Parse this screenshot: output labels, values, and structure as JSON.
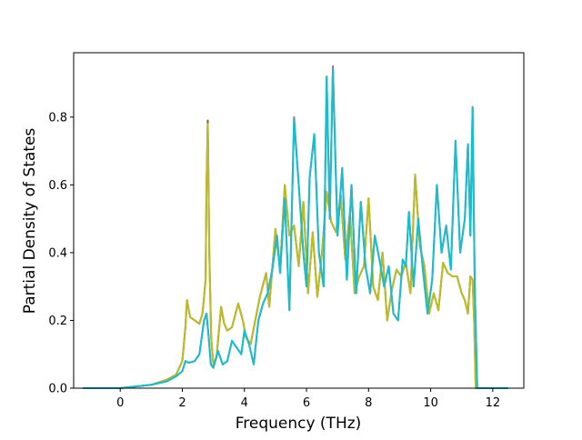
{
  "chart_data": {
    "type": "line",
    "title": "",
    "xlabel": "Frequency (THz)",
    "ylabel": "Partial Density of States",
    "xlim": [
      -1.5,
      13.0
    ],
    "ylim": [
      0.0,
      0.99
    ],
    "xticks": [
      0,
      2,
      4,
      6,
      8,
      10,
      12
    ],
    "xtick_labels": [
      "0",
      "2",
      "4",
      "6",
      "8",
      "10",
      "12"
    ],
    "yticks": [
      0.0,
      0.2,
      0.4,
      0.6,
      0.8
    ],
    "ytick_labels": [
      "0.0",
      "0.2",
      "0.4",
      "0.6",
      "0.8"
    ],
    "grid": false,
    "legend": "none",
    "series": [
      {
        "color": "#8c564b",
        "x": [
          -1.2,
          0.0,
          0.5,
          1.0,
          1.5,
          1.8,
          2.0,
          2.1,
          2.15,
          2.25,
          2.4,
          2.55,
          2.65,
          2.75,
          2.78,
          2.82,
          2.87,
          2.93,
          3.0,
          3.1,
          3.25,
          3.35,
          3.45,
          3.6,
          3.8,
          3.95,
          4.05,
          4.2,
          4.35,
          4.5,
          4.7,
          4.8,
          5.0,
          5.15,
          5.3,
          5.45,
          5.6,
          5.75,
          5.9,
          6.05,
          6.2,
          6.35,
          6.5,
          6.65,
          6.8,
          6.95,
          7.1,
          7.25,
          7.4,
          7.55,
          7.7,
          7.85,
          8.0,
          8.15,
          8.3,
          8.45,
          8.6,
          8.75,
          8.9,
          9.05,
          9.2,
          9.35,
          9.5,
          9.65,
          9.8,
          9.95,
          10.1,
          10.25,
          10.4,
          10.55,
          10.7,
          10.85,
          11.0,
          11.1,
          11.2,
          11.28,
          11.35,
          11.4,
          11.45,
          11.5,
          12.5
        ],
        "y": [
          0.0,
          0.0,
          0.005,
          0.01,
          0.025,
          0.04,
          0.08,
          0.18,
          0.26,
          0.21,
          0.2,
          0.19,
          0.22,
          0.32,
          0.6,
          0.79,
          0.4,
          0.15,
          0.07,
          0.09,
          0.24,
          0.19,
          0.17,
          0.18,
          0.25,
          0.2,
          0.15,
          0.13,
          0.2,
          0.27,
          0.34,
          0.24,
          0.47,
          0.35,
          0.6,
          0.45,
          0.48,
          0.36,
          0.55,
          0.28,
          0.46,
          0.27,
          0.4,
          0.58,
          0.49,
          0.46,
          0.57,
          0.38,
          0.52,
          0.28,
          0.33,
          0.36,
          0.56,
          0.3,
          0.26,
          0.4,
          0.2,
          0.29,
          0.35,
          0.33,
          0.37,
          0.28,
          0.63,
          0.42,
          0.36,
          0.22,
          0.28,
          0.23,
          0.37,
          0.34,
          0.33,
          0.33,
          0.28,
          0.26,
          0.22,
          0.33,
          0.32,
          0.2,
          0.0,
          0.0,
          0.0
        ]
      },
      {
        "color": "#bcbd22",
        "x": [
          -1.2,
          0.0,
          0.5,
          1.0,
          1.5,
          1.8,
          2.0,
          2.1,
          2.15,
          2.25,
          2.4,
          2.55,
          2.65,
          2.75,
          2.78,
          2.82,
          2.87,
          2.93,
          3.0,
          3.1,
          3.25,
          3.35,
          3.45,
          3.6,
          3.8,
          3.95,
          4.05,
          4.2,
          4.35,
          4.5,
          4.7,
          4.8,
          5.0,
          5.15,
          5.3,
          5.45,
          5.6,
          5.75,
          5.9,
          6.05,
          6.2,
          6.35,
          6.5,
          6.65,
          6.8,
          6.95,
          7.1,
          7.25,
          7.4,
          7.55,
          7.7,
          7.85,
          8.0,
          8.15,
          8.3,
          8.45,
          8.6,
          8.75,
          8.9,
          9.05,
          9.2,
          9.35,
          9.5,
          9.65,
          9.8,
          9.95,
          10.1,
          10.25,
          10.4,
          10.55,
          10.7,
          10.85,
          11.0,
          11.1,
          11.2,
          11.28,
          11.35,
          11.4,
          11.45,
          11.5,
          12.5
        ],
        "y": [
          0.0,
          0.0,
          0.005,
          0.01,
          0.025,
          0.04,
          0.08,
          0.18,
          0.26,
          0.21,
          0.2,
          0.19,
          0.22,
          0.32,
          0.6,
          0.78,
          0.4,
          0.15,
          0.07,
          0.09,
          0.24,
          0.19,
          0.17,
          0.18,
          0.25,
          0.2,
          0.15,
          0.13,
          0.2,
          0.27,
          0.34,
          0.24,
          0.47,
          0.35,
          0.6,
          0.45,
          0.48,
          0.36,
          0.55,
          0.28,
          0.46,
          0.27,
          0.4,
          0.58,
          0.49,
          0.46,
          0.57,
          0.38,
          0.52,
          0.28,
          0.33,
          0.36,
          0.56,
          0.3,
          0.26,
          0.4,
          0.2,
          0.29,
          0.35,
          0.33,
          0.37,
          0.28,
          0.63,
          0.42,
          0.36,
          0.22,
          0.28,
          0.23,
          0.37,
          0.34,
          0.33,
          0.33,
          0.28,
          0.26,
          0.22,
          0.33,
          0.32,
          0.2,
          0.0,
          0.0,
          0.0
        ]
      },
      {
        "color": "#7f7f7f",
        "x": [
          -1.2,
          0.0,
          0.5,
          1.0,
          1.5,
          1.8,
          2.0,
          2.1,
          2.2,
          2.4,
          2.55,
          2.7,
          2.78,
          2.85,
          2.92,
          3.0,
          3.15,
          3.3,
          3.45,
          3.6,
          3.75,
          3.9,
          4.0,
          4.15,
          4.3,
          4.45,
          4.6,
          4.75,
          4.9,
          5.05,
          5.15,
          5.3,
          5.45,
          5.6,
          5.75,
          5.9,
          6.0,
          6.1,
          6.25,
          6.4,
          6.55,
          6.65,
          6.75,
          6.85,
          7.0,
          7.15,
          7.3,
          7.45,
          7.6,
          7.75,
          7.9,
          8.05,
          8.2,
          8.35,
          8.5,
          8.65,
          8.8,
          8.95,
          9.1,
          9.2,
          9.3,
          9.45,
          9.6,
          9.75,
          9.9,
          10.05,
          10.2,
          10.35,
          10.5,
          10.65,
          10.8,
          10.95,
          11.1,
          11.2,
          11.28,
          11.35,
          11.42,
          11.5,
          12.5
        ],
        "y": [
          0.0,
          0.0,
          0.005,
          0.01,
          0.02,
          0.035,
          0.05,
          0.08,
          0.075,
          0.08,
          0.1,
          0.2,
          0.22,
          0.15,
          0.07,
          0.06,
          0.11,
          0.07,
          0.08,
          0.14,
          0.12,
          0.1,
          0.17,
          0.13,
          0.07,
          0.2,
          0.25,
          0.28,
          0.35,
          0.45,
          0.34,
          0.56,
          0.23,
          0.8,
          0.6,
          0.4,
          0.3,
          0.62,
          0.75,
          0.4,
          0.3,
          0.92,
          0.5,
          0.95,
          0.45,
          0.65,
          0.32,
          0.6,
          0.28,
          0.55,
          0.36,
          0.28,
          0.45,
          0.38,
          0.3,
          0.36,
          0.22,
          0.2,
          0.38,
          0.36,
          0.52,
          0.3,
          0.5,
          0.35,
          0.22,
          0.32,
          0.6,
          0.4,
          0.48,
          0.35,
          0.73,
          0.4,
          0.5,
          0.72,
          0.45,
          0.83,
          0.3,
          0.0,
          0.0
        ]
      },
      {
        "color": "#17becf",
        "x": [
          -1.2,
          0.0,
          0.5,
          1.0,
          1.5,
          1.8,
          2.0,
          2.1,
          2.2,
          2.4,
          2.55,
          2.7,
          2.78,
          2.85,
          2.92,
          3.0,
          3.15,
          3.3,
          3.45,
          3.6,
          3.75,
          3.9,
          4.0,
          4.15,
          4.3,
          4.45,
          4.6,
          4.75,
          4.9,
          5.05,
          5.15,
          5.3,
          5.45,
          5.6,
          5.75,
          5.9,
          6.0,
          6.1,
          6.25,
          6.4,
          6.55,
          6.65,
          6.75,
          6.85,
          7.0,
          7.15,
          7.3,
          7.45,
          7.6,
          7.75,
          7.9,
          8.05,
          8.2,
          8.35,
          8.5,
          8.65,
          8.8,
          8.95,
          9.1,
          9.2,
          9.3,
          9.45,
          9.6,
          9.75,
          9.9,
          10.05,
          10.2,
          10.35,
          10.5,
          10.65,
          10.8,
          10.95,
          11.1,
          11.2,
          11.28,
          11.35,
          11.42,
          11.5,
          12.5
        ],
        "y": [
          0.0,
          0.0,
          0.005,
          0.01,
          0.02,
          0.035,
          0.05,
          0.08,
          0.075,
          0.08,
          0.1,
          0.2,
          0.22,
          0.15,
          0.07,
          0.06,
          0.11,
          0.07,
          0.08,
          0.14,
          0.12,
          0.1,
          0.17,
          0.13,
          0.07,
          0.2,
          0.25,
          0.28,
          0.35,
          0.45,
          0.34,
          0.56,
          0.23,
          0.79,
          0.6,
          0.4,
          0.3,
          0.62,
          0.75,
          0.4,
          0.3,
          0.92,
          0.5,
          0.94,
          0.45,
          0.65,
          0.32,
          0.6,
          0.28,
          0.55,
          0.36,
          0.28,
          0.45,
          0.38,
          0.3,
          0.36,
          0.22,
          0.2,
          0.38,
          0.36,
          0.52,
          0.3,
          0.5,
          0.35,
          0.22,
          0.32,
          0.6,
          0.4,
          0.48,
          0.35,
          0.73,
          0.4,
          0.5,
          0.72,
          0.45,
          0.83,
          0.3,
          0.0,
          0.0
        ]
      }
    ]
  }
}
